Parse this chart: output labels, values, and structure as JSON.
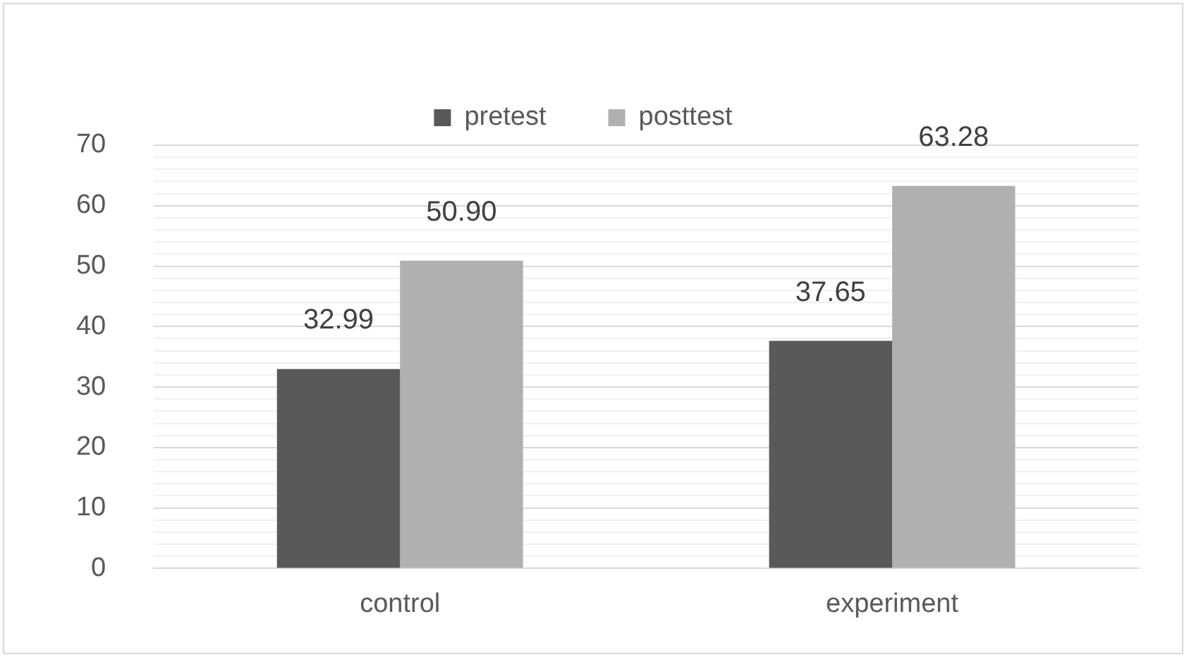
{
  "chart_data": {
    "type": "bar",
    "categories": [
      "control",
      "experiment"
    ],
    "series": [
      {
        "name": "pretest",
        "color": "#595959",
        "values": [
          32.99,
          37.65
        ],
        "value_labels": [
          "32.99",
          "37.65"
        ]
      },
      {
        "name": "posttest",
        "color": "#b0b0b0",
        "values": [
          50.9,
          63.28
        ],
        "value_labels": [
          "50.90",
          "63.28"
        ]
      }
    ],
    "ylim": [
      0,
      70
    ],
    "yticks": [
      0,
      {
        "value": 2,
        "label": null
      },
      {
        "value": 4,
        "label": null
      },
      {
        "value": 6,
        "label": null
      },
      {
        "value": 8,
        "label": null
      },
      10,
      {
        "value": 12,
        "label": null
      },
      {
        "value": 14,
        "label": null
      },
      {
        "value": 16,
        "label": null
      },
      {
        "value": 18,
        "label": null
      },
      20,
      {
        "value": 22,
        "label": null
      },
      {
        "value": 24,
        "label": null
      },
      {
        "value": 26,
        "label": null
      },
      {
        "value": 28,
        "label": null
      },
      30,
      {
        "value": 32,
        "label": null
      },
      {
        "value": 34,
        "label": null
      },
      {
        "value": 36,
        "label": null
      },
      {
        "value": 38,
        "label": null
      },
      40,
      {
        "value": 42,
        "label": null
      },
      {
        "value": 44,
        "label": null
      },
      {
        "value": 46,
        "label": null
      },
      {
        "value": 48,
        "label": null
      },
      50,
      {
        "value": 52,
        "label": null
      },
      {
        "value": 54,
        "label": null
      },
      {
        "value": 56,
        "label": null
      },
      {
        "value": 58,
        "label": null
      },
      60,
      {
        "value": 62,
        "label": null
      },
      {
        "value": 64,
        "label": null
      },
      {
        "value": 66,
        "label": null
      },
      {
        "value": 68,
        "label": null
      },
      70
    ],
    "grid": "y",
    "legend": "top"
  }
}
